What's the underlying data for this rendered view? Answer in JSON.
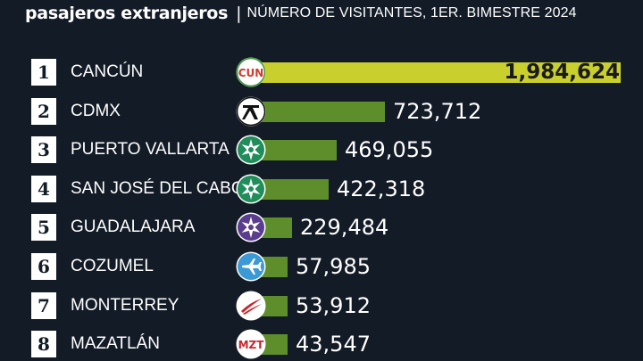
{
  "header": {
    "title": "pasajeros extranjeros",
    "separator": "|",
    "subtitle": "NÚMERO DE VISITANTES, 1ER. BIMESTRE 2024"
  },
  "colors": {
    "background": "#131b26",
    "bar": "#5e8e2c",
    "top_bar": "#c9d02e"
  },
  "chart_data": {
    "type": "bar",
    "orientation": "horizontal",
    "title": "pasajeros extranjeros",
    "subtitle": "NÚMERO DE VISITANTES, 1ER. BIMESTRE 2024",
    "categories": [
      "CANCÚN",
      "CDMX",
      "PUERTO VALLARTA",
      "SAN JOSÉ DEL CABO",
      "GUADALAJARA",
      "COZUMEL",
      "MONTERREY",
      "MAZATLÁN"
    ],
    "values": [
      1984624,
      723712,
      469055,
      422318,
      229484,
      57985,
      53912,
      43547
    ],
    "value_labels": [
      "1,984,624",
      "723,712",
      "469,055",
      "422,318",
      "229,484",
      "57,985",
      "53,912",
      "43,547"
    ],
    "ranks": [
      "1",
      "2",
      "3",
      "4",
      "5",
      "6",
      "7",
      "8"
    ],
    "logos": [
      "cun-logo-icon",
      "cdmx-airport-icon",
      "oma-star-icon",
      "oma-star-icon",
      "gap-star-icon",
      "airplane-icon",
      "monterrey-swoosh-icon",
      "mzt-logo-icon"
    ],
    "logo_text": {
      "cun": "CUN",
      "mzt": "MZT"
    },
    "xlim": [
      0,
      1984624
    ],
    "grid": false,
    "legend": "none"
  }
}
